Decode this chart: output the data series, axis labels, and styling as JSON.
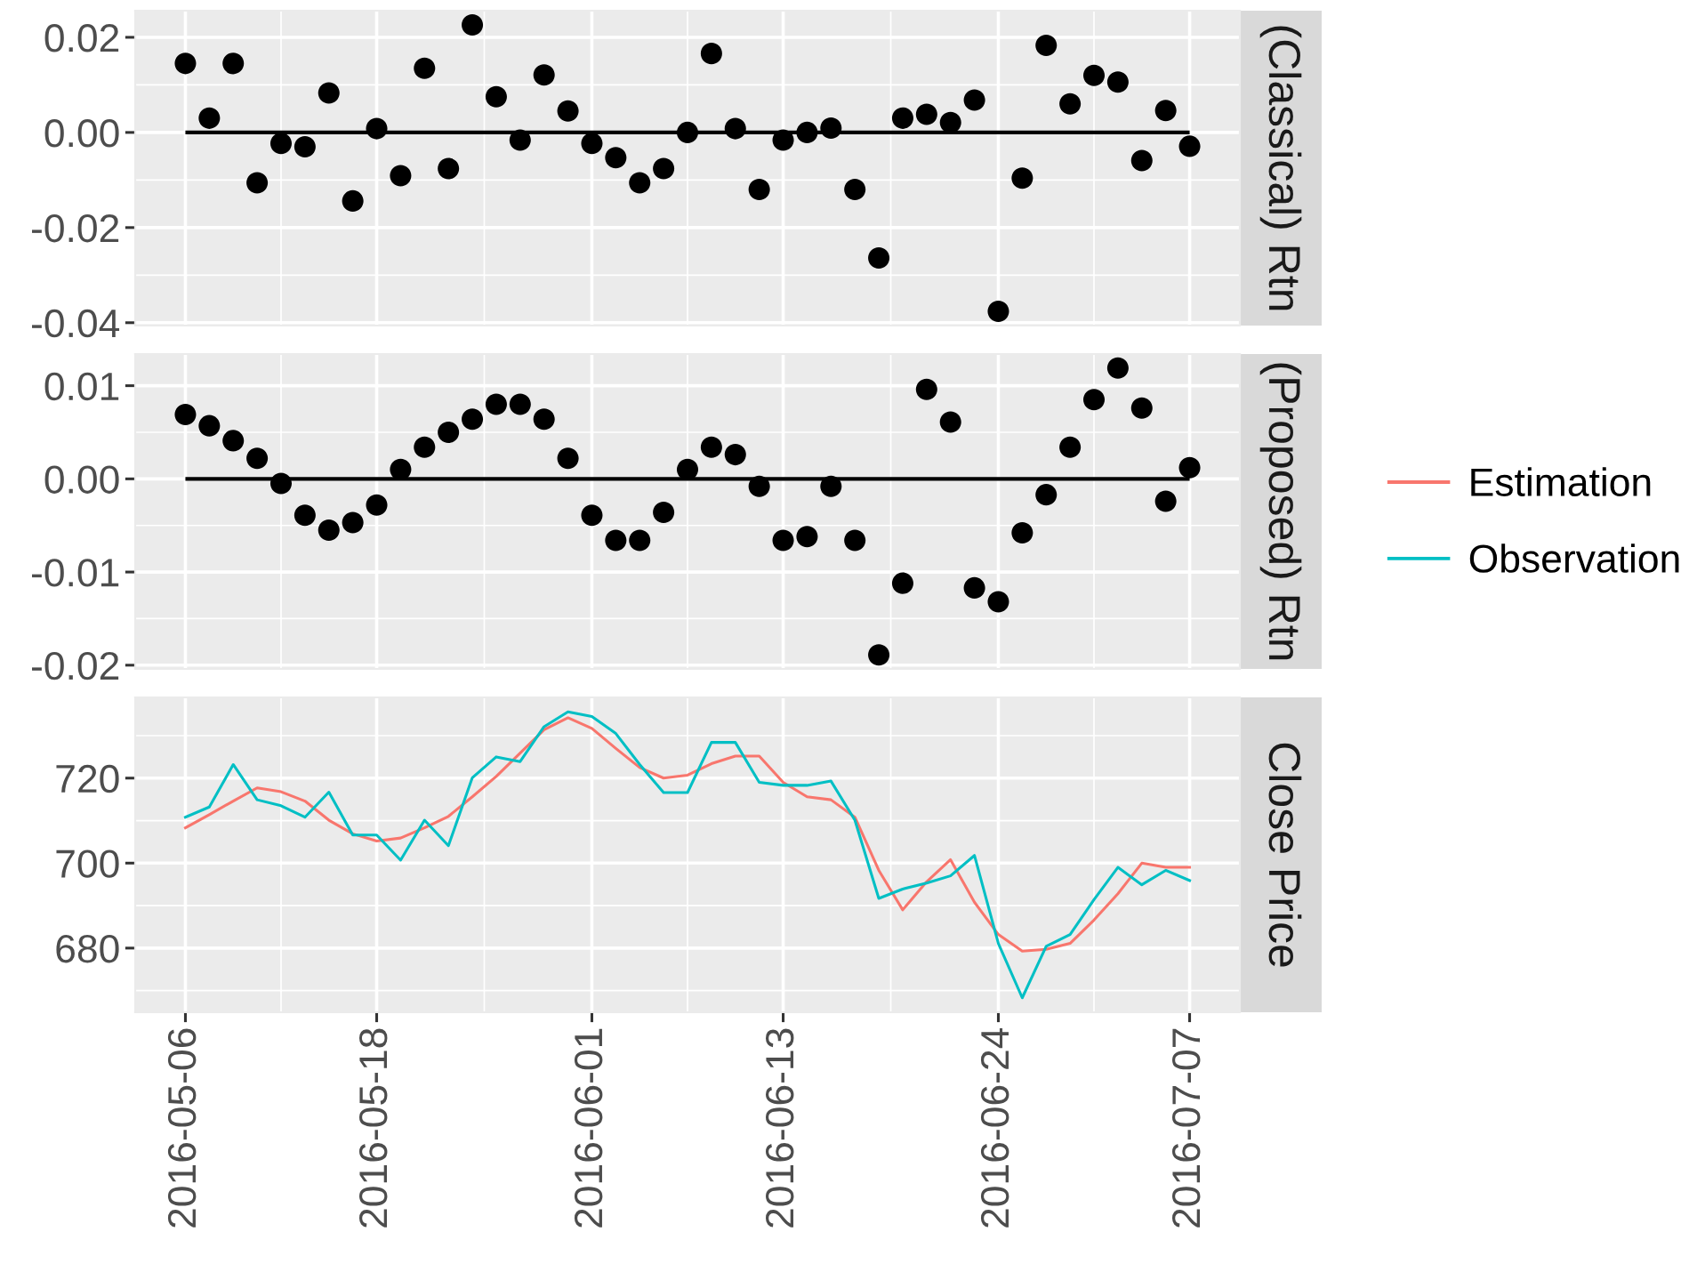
{
  "chart_data": [
    {
      "type": "scatter",
      "ylabel": "(Classical) Rtn",
      "categories": [
        "2016-05-06",
        null,
        null,
        null,
        null,
        null,
        null,
        null,
        "2016-05-18",
        null,
        null,
        null,
        null,
        null,
        null,
        null,
        null,
        "2016-06-01",
        null,
        null,
        null,
        null,
        null,
        null,
        null,
        "2016-06-13",
        null,
        null,
        null,
        null,
        null,
        null,
        null,
        null,
        "2016-06-24",
        null,
        null,
        null,
        null,
        null,
        null,
        null,
        "2016-07-07"
      ],
      "series": [
        {
          "color": "#000000",
          "values": [
            0.0145,
            0.003,
            0.0145,
            -0.0106,
            -0.0023,
            -0.003,
            0.0083,
            -0.0144,
            0.0008,
            -0.0091,
            0.0135,
            -0.0076,
            0.0226,
            0.0075,
            -0.0016,
            0.0121,
            0.0045,
            -0.0023,
            -0.0053,
            -0.0106,
            -0.0076,
            0.0,
            0.0166,
            0.0008,
            -0.012,
            -0.0016,
            0.0,
            0.0009,
            -0.012,
            -0.0264,
            0.003,
            0.0038,
            0.0021,
            0.0068,
            -0.0376,
            -0.0096,
            0.0183,
            0.006,
            0.012,
            0.0106,
            -0.0059,
            0.0046,
            -0.0029
          ]
        }
      ],
      "ref_lines": [
        {
          "axis": "y",
          "value": 0,
          "color": "#000000"
        }
      ],
      "ylim": [
        -0.0406,
        0.0256
      ],
      "yticks": [
        {
          "value": -0.04,
          "label": "-0.04"
        },
        {
          "value": -0.02,
          "label": "-0.02"
        },
        {
          "value": 0,
          "label": "0.00"
        },
        {
          "value": 0.02,
          "label": "0.02"
        }
      ],
      "grid": true,
      "marker": "circle",
      "tick_labels": "y"
    },
    {
      "type": "scatter",
      "ylabel": "(Proposed) Rtn",
      "categories": [
        "2016-05-06",
        null,
        null,
        null,
        null,
        null,
        null,
        null,
        "2016-05-18",
        null,
        null,
        null,
        null,
        null,
        null,
        null,
        null,
        "2016-06-01",
        null,
        null,
        null,
        null,
        null,
        null,
        null,
        "2016-06-13",
        null,
        null,
        null,
        null,
        null,
        null,
        null,
        null,
        "2016-06-24",
        null,
        null,
        null,
        null,
        null,
        null,
        null,
        "2016-07-07"
      ],
      "series": [
        {
          "color": "#000000",
          "values": [
            0.0069,
            0.0057,
            0.0041,
            0.0022,
            -0.0005,
            -0.0039,
            -0.0055,
            -0.0047,
            -0.0028,
            0.001,
            0.0034,
            0.005,
            0.0064,
            0.008,
            0.008,
            0.0064,
            0.0022,
            -0.0039,
            -0.0066,
            -0.0066,
            -0.0036,
            0.001,
            0.0034,
            0.0026,
            -0.0008,
            -0.0066,
            -0.0062,
            -0.0008,
            -0.0066,
            -0.0189,
            -0.0112,
            0.0096,
            0.0061,
            -0.0117,
            -0.0132,
            -0.0058,
            -0.0017,
            0.0034,
            0.0085,
            0.0119,
            0.0076,
            -0.0024,
            0.0012
          ]
        }
      ],
      "ref_lines": [
        {
          "axis": "y",
          "value": 0,
          "color": "#000000"
        }
      ],
      "ylim": [
        -0.0204,
        0.0134
      ],
      "yticks": [
        {
          "value": -0.02,
          "label": "-0.02"
        },
        {
          "value": -0.01,
          "label": "-0.01"
        },
        {
          "value": 0,
          "label": "0.00"
        },
        {
          "value": 0.01,
          "label": "0.01"
        }
      ],
      "grid": true,
      "marker": "circle",
      "tick_labels": "y"
    },
    {
      "type": "line",
      "ylabel": "Close Price",
      "categories": [
        "2016-05-06",
        null,
        null,
        null,
        null,
        null,
        null,
        null,
        "2016-05-18",
        null,
        null,
        null,
        null,
        null,
        null,
        null,
        null,
        "2016-06-01",
        null,
        null,
        null,
        null,
        null,
        null,
        null,
        "2016-06-13",
        null,
        null,
        null,
        null,
        null,
        null,
        null,
        null,
        "2016-06-24",
        null,
        null,
        null,
        null,
        null,
        null,
        null,
        "2016-07-07"
      ],
      "series": [
        {
          "name": "Estimation",
          "color": "#f8766d",
          "values": [
            708.3,
            711.4,
            714.6,
            717.7,
            716.8,
            714.6,
            710.1,
            706.9,
            705.2,
            705.9,
            708.3,
            711.0,
            715.6,
            720.4,
            725.9,
            731.4,
            734.2,
            731.7,
            727.0,
            722.5,
            720.0,
            720.7,
            723.4,
            725.2,
            725.2,
            719.0,
            715.6,
            714.9,
            710.8,
            698.3,
            689.0,
            695.6,
            700.8,
            690.8,
            683.2,
            679.3,
            679.7,
            681.1,
            686.6,
            692.8,
            700.0,
            699.0,
            699.0
          ]
        },
        {
          "name": "Observation",
          "color": "#00bfc4",
          "values": [
            710.8,
            713.2,
            723.2,
            714.9,
            713.5,
            710.8,
            716.7,
            706.6,
            706.6,
            700.7,
            710.1,
            704.1,
            720.1,
            725.0,
            723.9,
            732.1,
            735.6,
            734.5,
            730.5,
            723.2,
            716.6,
            716.6,
            728.4,
            728.4,
            719.0,
            718.3,
            718.3,
            719.3,
            710.1,
            691.7,
            693.9,
            695.3,
            697.0,
            701.8,
            681.1,
            668.3,
            680.4,
            683.2,
            691.4,
            699.0,
            694.9,
            698.3,
            695.9
          ]
        }
      ],
      "ylim": [
        664.9,
        739.0
      ],
      "yticks": [
        680,
        700,
        720
      ],
      "grid": true,
      "legend": "right"
    }
  ]
}
